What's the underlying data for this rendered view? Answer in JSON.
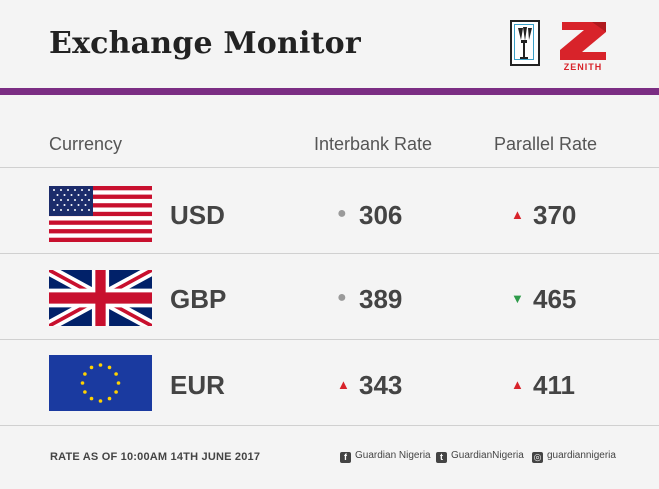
{
  "header": {
    "title": "Exchange Monitor",
    "logo_left_icon": "torch-emblem-icon",
    "logo_right_icon": "zenith-bank-logo",
    "logo_right_text": "ZENITH",
    "accent_color": "#7b2d83"
  },
  "table": {
    "columns": [
      "Currency",
      "Interbank Rate",
      "Parallel Rate"
    ],
    "rows": [
      {
        "flag": "us-flag-icon",
        "code": "USD",
        "interbank": "306",
        "interbank_trend": "flat",
        "parallel": "370",
        "parallel_trend": "up"
      },
      {
        "flag": "uk-flag-icon",
        "code": "GBP",
        "interbank": "389",
        "interbank_trend": "flat",
        "parallel": "465",
        "parallel_trend": "down"
      },
      {
        "flag": "eu-flag-icon",
        "code": "EUR",
        "interbank": "343",
        "interbank_trend": "up",
        "parallel": "411",
        "parallel_trend": "up"
      }
    ]
  },
  "trend_colors": {
    "up": "#d8232a",
    "down": "#2e9b4a",
    "flat": "#9a9a9a"
  },
  "footer": {
    "note": "RATE AS OF 10:00AM 14TH JUNE 2017",
    "social": [
      {
        "icon": "facebook-icon",
        "label": "Guardian Nigeria"
      },
      {
        "icon": "twitter-icon",
        "label": "GuardianNigeria"
      },
      {
        "icon": "instagram-icon",
        "label": "guardiannigeria"
      }
    ]
  }
}
